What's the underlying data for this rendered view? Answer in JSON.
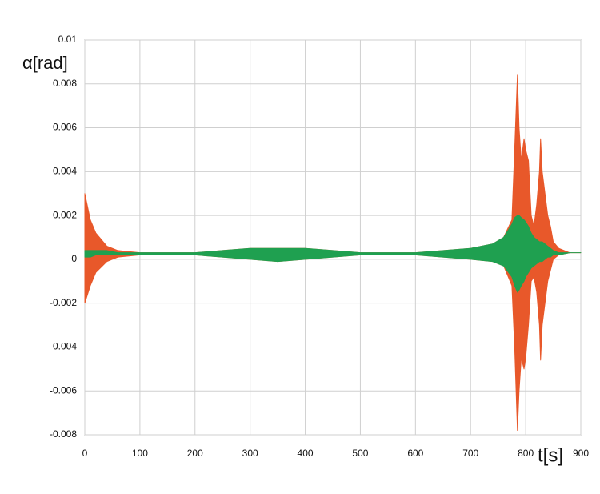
{
  "chart_data": {
    "type": "band",
    "y_label": "α[rad]",
    "x_label": "t[s]",
    "x": [
      0,
      10,
      20,
      40,
      60,
      100,
      200,
      250,
      300,
      350,
      400,
      450,
      500,
      600,
      700,
      740,
      760,
      775,
      780,
      785,
      788,
      792,
      797,
      800,
      805,
      810,
      815,
      820,
      825,
      827,
      830,
      835,
      840,
      845,
      850,
      860,
      880,
      900
    ],
    "series": [
      {
        "color": "#e8582a",
        "values": [
          0.003,
          0.0018,
          0.0012,
          0.0006,
          0.0004,
          0.0003,
          0.0003,
          0.0004,
          0.0005,
          0.0005,
          0.0005,
          0.0004,
          0.0003,
          0.0003,
          0.0005,
          0.0007,
          0.001,
          0.0018,
          0.005,
          0.0084,
          0.006,
          0.0045,
          0.0055,
          0.005,
          0.0045,
          0.002,
          0.0015,
          0.0025,
          0.004,
          0.0055,
          0.004,
          0.003,
          0.002,
          0.0015,
          0.0008,
          0.0005,
          0.0003,
          0.0003
        ],
        "lower": [
          -0.002,
          -0.0012,
          -0.0006,
          -0.0001,
          0.0001,
          0.0002,
          0.0002,
          0.0001,
          0.0,
          -0.0001,
          0.0,
          0.0001,
          0.0002,
          0.0002,
          0.0,
          -0.0001,
          -0.0003,
          -0.0012,
          -0.004,
          -0.0078,
          -0.006,
          -0.0045,
          -0.005,
          -0.0045,
          -0.003,
          -0.001,
          -0.0008,
          -0.0015,
          -0.003,
          -0.0046,
          -0.003,
          -0.002,
          -0.001,
          -0.0005,
          0.0,
          0.0002,
          0.0003,
          0.0003
        ]
      },
      {
        "color": "#1fa050",
        "values": [
          0.0004,
          0.0004,
          0.0004,
          0.0004,
          0.0003,
          0.0003,
          0.0003,
          0.0004,
          0.0005,
          0.0005,
          0.0005,
          0.0004,
          0.0003,
          0.0003,
          0.0005,
          0.0007,
          0.001,
          0.0016,
          0.0019,
          0.002,
          0.002,
          0.0019,
          0.0018,
          0.0017,
          0.0015,
          0.0012,
          0.001,
          0.0009,
          0.0008,
          0.0008,
          0.0008,
          0.0007,
          0.0006,
          0.0005,
          0.0004,
          0.0003,
          0.0003,
          0.0003
        ],
        "lower": [
          0.0001,
          0.0001,
          0.0002,
          0.0002,
          0.0002,
          0.0002,
          0.0002,
          0.0001,
          0.0,
          -0.0001,
          0.0,
          0.0001,
          0.0002,
          0.0002,
          0.0,
          -0.0001,
          -0.0003,
          -0.0008,
          -0.0012,
          -0.0015,
          -0.0014,
          -0.0012,
          -0.001,
          -0.0008,
          -0.0006,
          -0.0004,
          -0.0003,
          -0.0002,
          -0.0001,
          -0.0001,
          -0.0001,
          0.0,
          0.0001,
          0.0001,
          0.0002,
          0.0002,
          0.0003,
          0.0003
        ]
      }
    ],
    "xlim": [
      0,
      900
    ],
    "xticks": [
      0,
      100,
      200,
      300,
      400,
      500,
      600,
      700,
      800,
      900
    ],
    "ylim": [
      -0.008,
      0.01
    ],
    "yticks": [
      0.01,
      0.008,
      0.006,
      0.004,
      0.002,
      0,
      -0.002,
      -0.004,
      -0.006,
      -0.008
    ],
    "grid": true
  }
}
